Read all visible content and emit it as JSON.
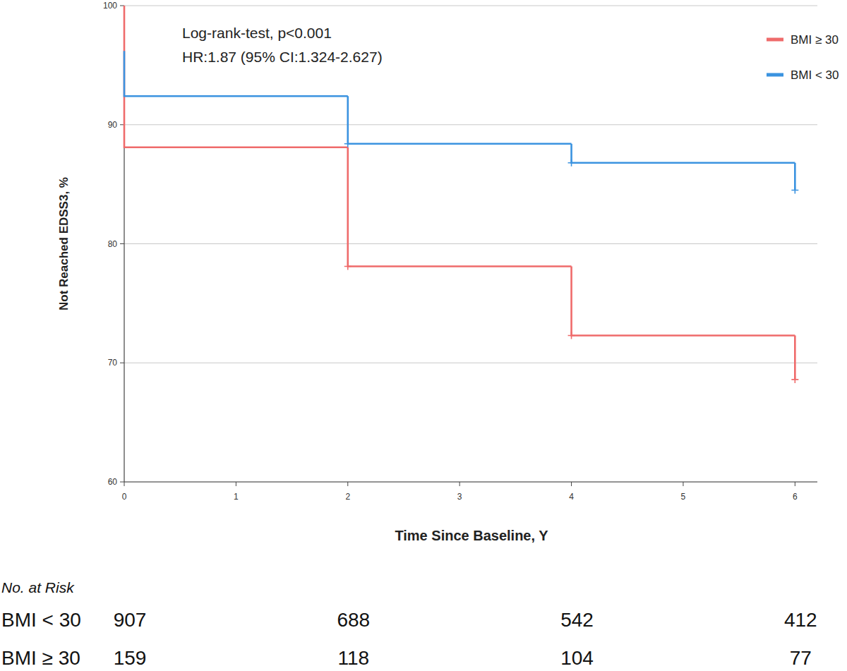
{
  "chart_data": {
    "type": "line",
    "line_style": "step",
    "x_label": "Time Since Baseline, Y",
    "y_label": "Not Reached EDSS3, %",
    "annotations": [
      "Log-rank-test, p<0.001",
      "HR:1.87 (95% CI:1.324-2.627)"
    ],
    "x": [
      0,
      0,
      2,
      4,
      6
    ],
    "series": [
      {
        "name": "BMI ≥ 30",
        "color": "#ef6b6b",
        "marker": "plus",
        "values": [
          100,
          88.1,
          78.1,
          72.3,
          68.6
        ]
      },
      {
        "name": "BMI < 30",
        "color": "#3b93e0",
        "marker": "plus",
        "values": [
          96.2,
          92.4,
          88.4,
          86.8,
          84.5
        ]
      }
    ],
    "xlim": [
      0,
      6.2
    ],
    "ylim": [
      60,
      100
    ],
    "xticks": [
      0,
      1,
      2,
      3,
      4,
      5,
      6
    ],
    "yticks": [
      60,
      70,
      80,
      90,
      100
    ],
    "grid": true,
    "legend": "top-right",
    "risk_table": {
      "title": "No. at Risk",
      "x": [
        0,
        2,
        4,
        6
      ],
      "rows": [
        {
          "name": "BMI < 30",
          "values": [
            907,
            688,
            542,
            412
          ]
        },
        {
          "name": "BMI ≥ 30",
          "values": [
            159,
            118,
            104,
            77
          ]
        }
      ]
    }
  }
}
